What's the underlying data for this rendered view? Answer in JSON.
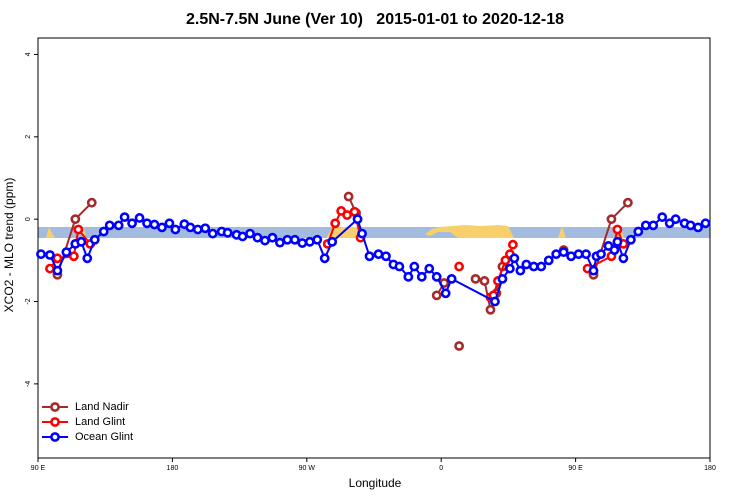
{
  "chart_data": {
    "type": "line",
    "title": "2.5N-7.5N June (Ver 10)   2015-01-01 to 2020-12-18",
    "x_label": "Longitude",
    "y_label": "XCO2 - MLO trend (ppm)",
    "xlim": [
      90,
      540
    ],
    "ylim": [
      -5.8,
      4.4
    ],
    "xticks": [
      {
        "value": 90,
        "label": "90 E"
      },
      180,
      {
        "value": 270,
        "label": "90 W"
      },
      {
        "value": 360,
        "label": "0"
      },
      {
        "value": 450,
        "label": "90 E"
      },
      {
        "value": 540,
        "label": "180"
      }
    ],
    "yticks": [
      -4,
      -2,
      0,
      2,
      4
    ],
    "legend": "bottom-left",
    "grid": false,
    "series": [
      {
        "name": "Land Nadir",
        "color": "#a52a2a",
        "x": [
          103,
          115,
          126,
          null,
          298,
          303,
          null,
          357,
          362,
          null,
          372,
          null,
          383,
          389,
          393,
          397,
          401,
          null,
          442,
          null,
          462,
          474,
          485
        ],
        "values": [
          -1.35,
          0.0,
          0.4,
          null,
          0.55,
          0.15,
          null,
          -1.85,
          -1.55,
          null,
          -3.08,
          null,
          -1.45,
          -1.5,
          -2.2,
          -1.8,
          -1.15,
          null,
          -0.75,
          null,
          -1.35,
          0.0,
          0.4
        ]
      },
      {
        "name": "Land Glint",
        "color": "#ff0000",
        "x": [
          98,
          103,
          114,
          117,
          125,
          null,
          284,
          289,
          293,
          297,
          302,
          306,
          null,
          372,
          null,
          393,
          395,
          398,
          403,
          406,
          408,
          null,
          458,
          474,
          478,
          482
        ],
        "values": [
          -1.2,
          -0.95,
          -0.9,
          -0.25,
          -0.6,
          null,
          -0.6,
          -0.1,
          0.2,
          0.1,
          0.18,
          -0.45,
          null,
          -1.15,
          null,
          -1.9,
          -1.85,
          -1.5,
          -1.0,
          -0.85,
          -0.62,
          null,
          -1.2,
          -0.9,
          -0.25,
          -0.6
        ]
      },
      {
        "name": "Ocean Glint",
        "color": "#0000ff",
        "x": [
          92,
          98,
          103,
          109,
          115,
          119,
          123,
          128,
          134,
          138,
          144,
          148,
          153,
          158,
          163,
          168,
          173,
          178,
          182,
          188,
          192,
          197,
          202,
          207,
          213,
          217,
          223,
          227,
          232,
          237,
          242,
          247,
          252,
          257,
          262,
          267,
          272,
          277,
          282,
          287,
          304,
          307,
          312,
          318,
          323,
          328,
          332,
          338,
          342,
          347,
          352,
          357,
          363,
          367,
          396,
          401,
          406,
          409,
          413,
          417,
          422,
          427,
          432,
          437,
          442,
          447,
          452,
          457,
          462,
          464,
          467,
          472,
          476,
          478,
          482,
          487,
          492,
          497,
          502,
          508,
          513,
          517,
          523,
          527,
          532,
          537
        ],
        "values": [
          -0.85,
          -0.87,
          -1.25,
          -0.8,
          -0.6,
          -0.55,
          -0.95,
          -0.5,
          -0.3,
          -0.15,
          -0.15,
          0.05,
          -0.1,
          0.03,
          -0.1,
          -0.13,
          -0.2,
          -0.1,
          -0.25,
          -0.12,
          -0.2,
          -0.25,
          -0.22,
          -0.35,
          -0.3,
          -0.33,
          -0.38,
          -0.42,
          -0.35,
          -0.45,
          -0.52,
          -0.45,
          -0.57,
          -0.5,
          -0.5,
          -0.58,
          -0.55,
          -0.5,
          -0.95,
          -0.55,
          0.0,
          -0.35,
          -0.9,
          -0.85,
          -0.9,
          -1.1,
          -1.15,
          -1.4,
          -1.15,
          -1.4,
          -1.2,
          -1.4,
          -1.8,
          -1.45,
          -2.0,
          -1.45,
          -1.2,
          -0.95,
          -1.25,
          -1.1,
          -1.15,
          -1.15,
          -1.0,
          -0.85,
          -0.8,
          -0.9,
          -0.85,
          -0.85,
          -1.25,
          -0.9,
          -0.85,
          -0.65,
          -0.75,
          -0.55,
          -0.95,
          -0.5,
          -0.3,
          -0.15,
          -0.15,
          0.05,
          -0.1,
          0.0,
          -0.1,
          -0.15,
          -0.2,
          -0.1
        ]
      }
    ]
  }
}
